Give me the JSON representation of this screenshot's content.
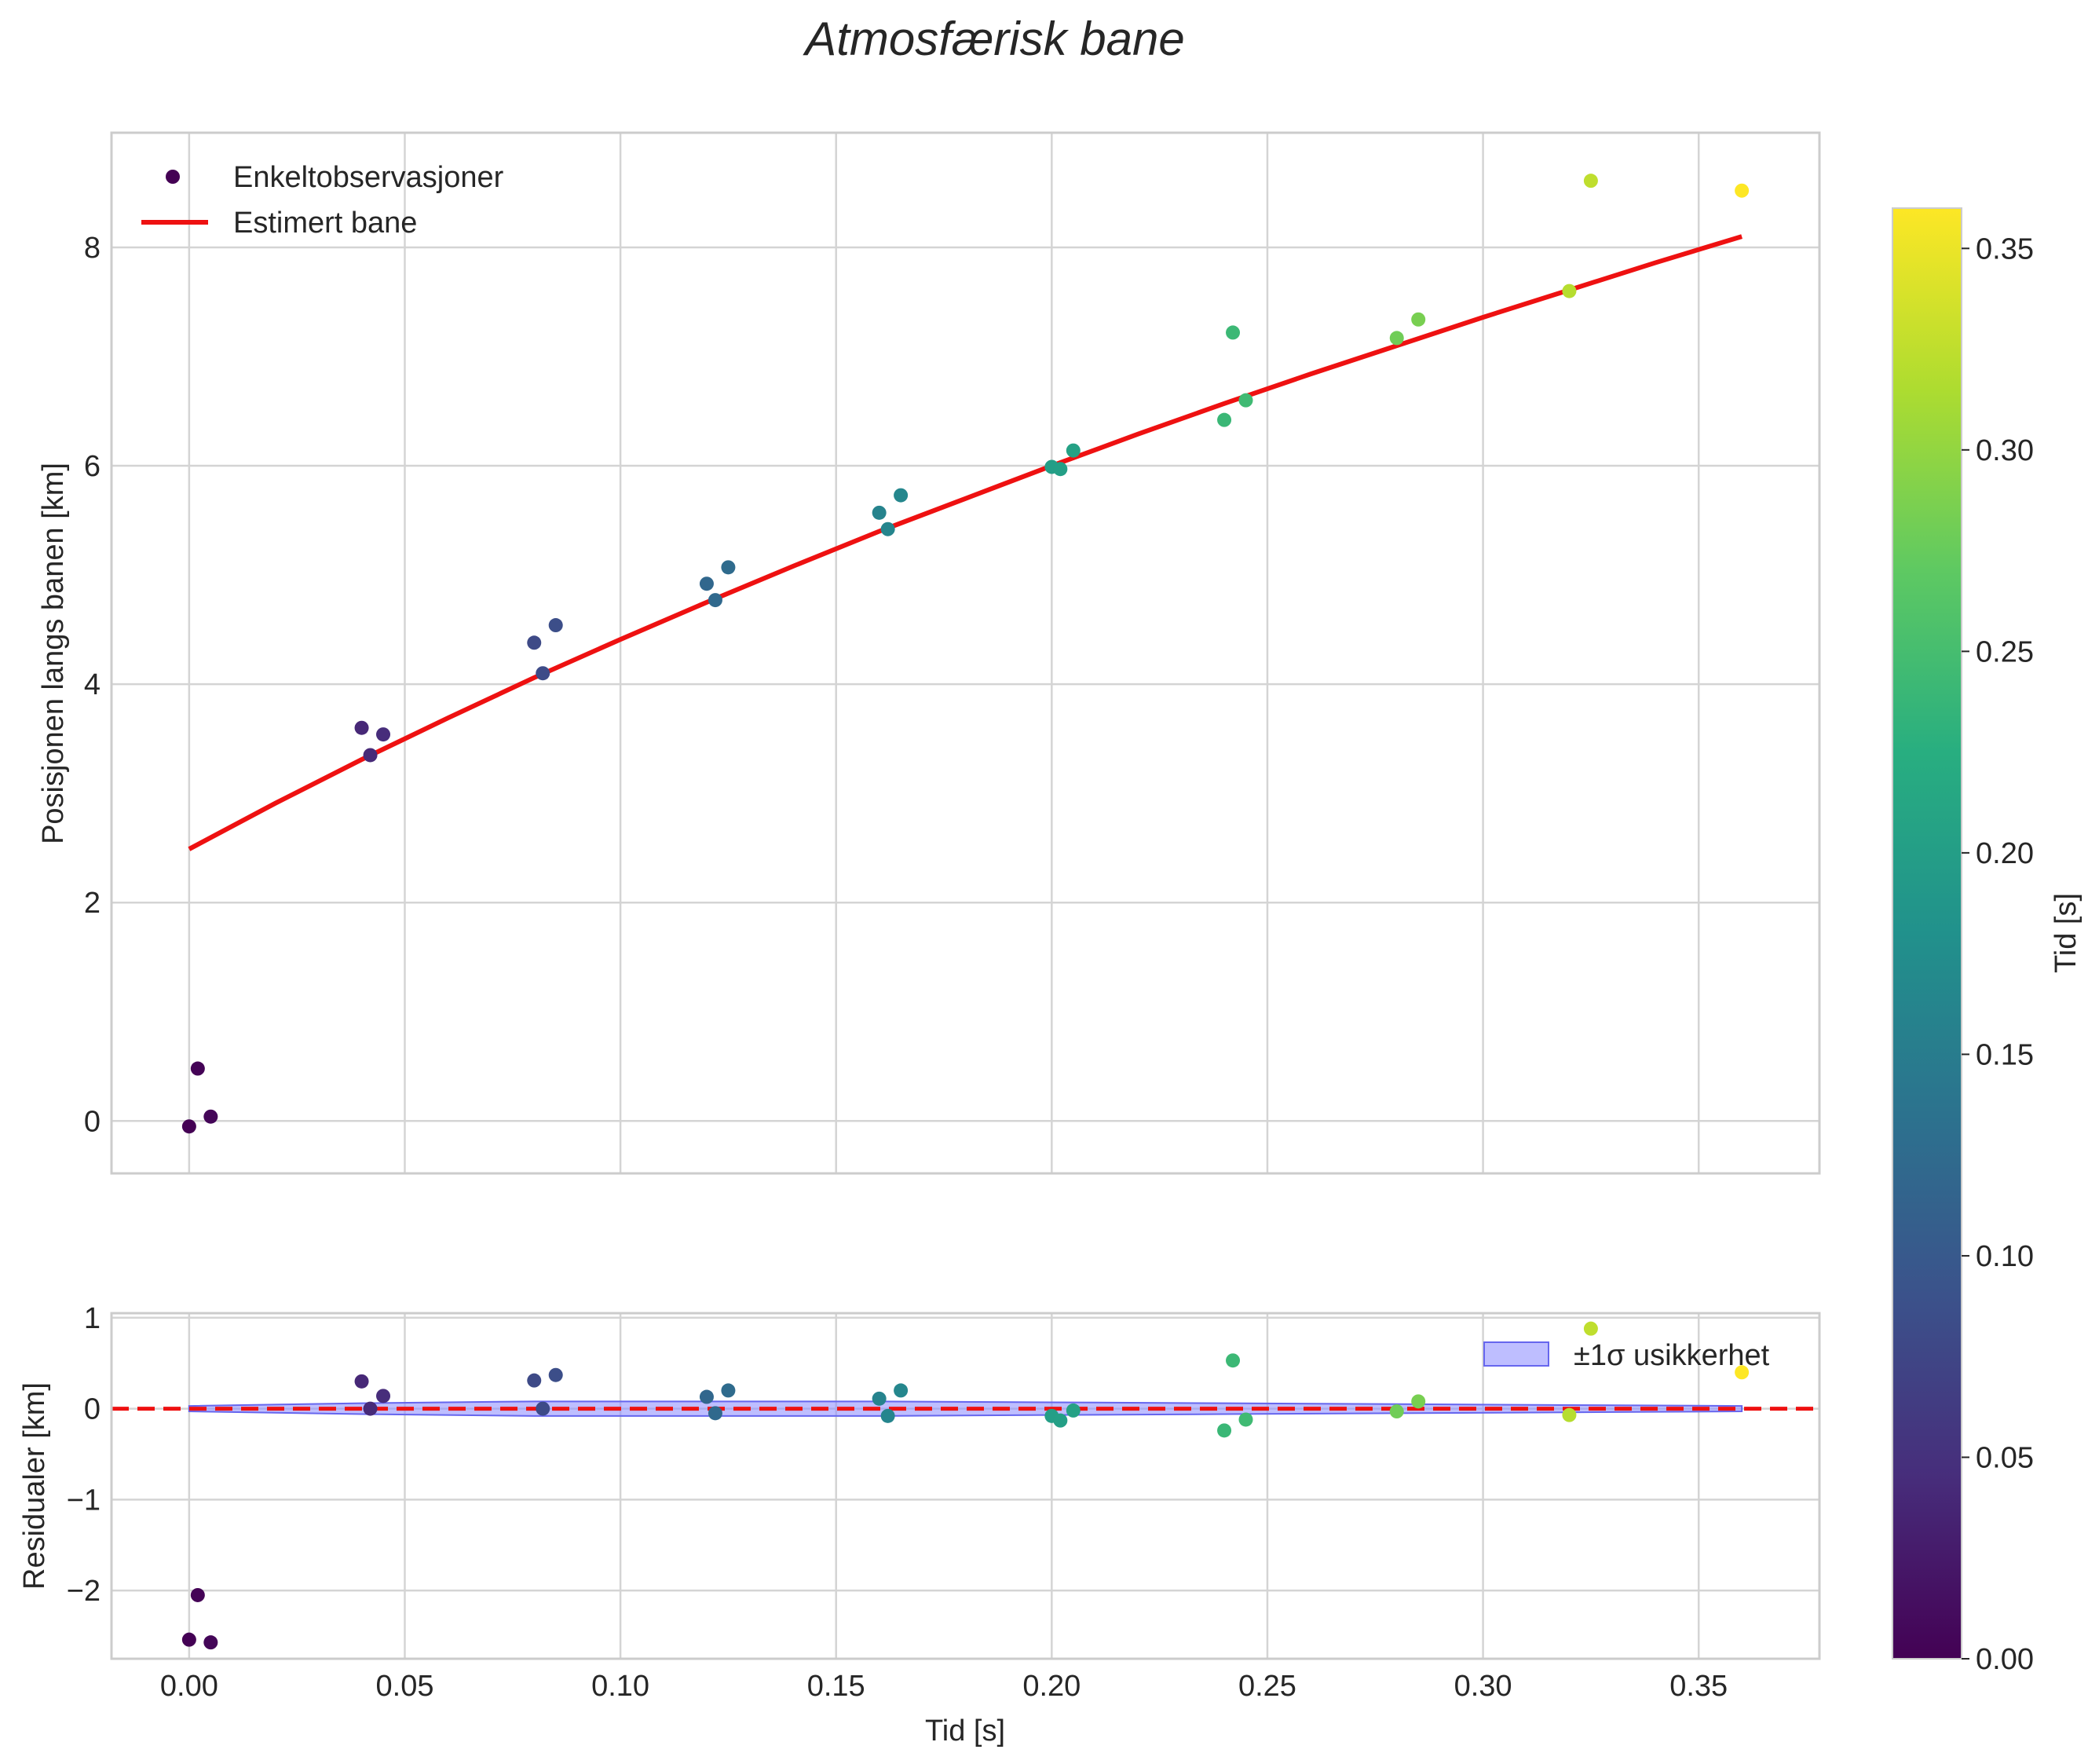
{
  "chart_data": {
    "title": "Atmosfærisk bane",
    "shared_xlabel": "Tid [s]",
    "colormap": "viridis",
    "xlim": [
      -0.018,
      0.378
    ],
    "x_ticks": [
      0.0,
      0.05,
      0.1,
      0.15,
      0.2,
      0.25,
      0.3,
      0.35
    ],
    "x_tick_labels": [
      "0.00",
      "0.05",
      "0.10",
      "0.15",
      "0.20",
      "0.25",
      "0.30",
      "0.35"
    ],
    "panels": [
      {
        "type": "scatter",
        "ylabel": "Posisjonen langs banen [km]",
        "ylim": [
          -0.48,
          9.05
        ],
        "y_ticks": [
          0,
          2,
          4,
          6,
          8
        ],
        "grid": true,
        "legend_position": "top-left",
        "legend": [
          {
            "label": "Enkeltobservasjoner",
            "kind": "marker"
          },
          {
            "label": "Estimert bane",
            "kind": "line",
            "color": "#ee1111"
          }
        ],
        "observations": {
          "name": "Enkeltobservasjoner",
          "t": [
            0.0,
            0.002,
            0.005,
            0.04,
            0.042,
            0.045,
            0.08,
            0.082,
            0.085,
            0.12,
            0.122,
            0.125,
            0.16,
            0.162,
            0.165,
            0.2,
            0.202,
            0.205,
            0.24,
            0.242,
            0.245,
            0.28,
            0.285,
            0.32,
            0.325,
            0.36
          ],
          "position_km": [
            -0.05,
            0.48,
            0.04,
            3.6,
            3.35,
            3.54,
            4.38,
            4.1,
            4.54,
            4.92,
            4.77,
            5.07,
            5.57,
            5.42,
            5.73,
            5.99,
            5.97,
            6.14,
            6.42,
            7.22,
            6.6,
            7.17,
            7.34,
            7.6,
            8.61,
            8.52
          ]
        },
        "fit": {
          "name": "Estimert bane",
          "color": "#ee1111",
          "t": [
            0.0,
            0.02,
            0.04,
            0.06,
            0.08,
            0.1,
            0.12,
            0.14,
            0.16,
            0.18,
            0.2,
            0.22,
            0.24,
            0.26,
            0.28,
            0.3,
            0.32,
            0.34,
            0.36
          ],
          "position_km": [
            2.49,
            2.91,
            3.31,
            3.69,
            4.06,
            4.41,
            4.75,
            5.08,
            5.4,
            5.7,
            6.0,
            6.29,
            6.57,
            6.84,
            7.1,
            7.36,
            7.61,
            7.86,
            8.1
          ]
        }
      },
      {
        "type": "scatter",
        "ylabel": "Residualer [km]",
        "ylim": [
          -2.75,
          1.05
        ],
        "y_ticks": [
          -2,
          -1,
          0,
          1
        ],
        "y_tick_labels": [
          "−2",
          "−1",
          "0",
          "1"
        ],
        "grid": true,
        "zero_line": {
          "value": 0,
          "color": "#ee1111",
          "style": "dashed"
        },
        "legend_position": "top-right",
        "legend": [
          {
            "label": "±1σ usikkerhet",
            "kind": "patch",
            "color": "#8888ff"
          }
        ],
        "uncertainty_band": {
          "t": [
            0.0,
            0.04,
            0.08,
            0.12,
            0.16,
            0.2,
            0.24,
            0.28,
            0.32,
            0.36
          ],
          "lower": [
            -0.03,
            -0.06,
            -0.08,
            -0.08,
            -0.08,
            -0.07,
            -0.06,
            -0.05,
            -0.04,
            -0.03
          ],
          "upper": [
            0.03,
            0.06,
            0.08,
            0.08,
            0.08,
            0.07,
            0.06,
            0.05,
            0.04,
            0.03
          ]
        },
        "residuals": {
          "t": [
            0.0,
            0.002,
            0.005,
            0.04,
            0.042,
            0.045,
            0.08,
            0.082,
            0.085,
            0.12,
            0.122,
            0.125,
            0.16,
            0.162,
            0.165,
            0.2,
            0.202,
            0.205,
            0.24,
            0.242,
            0.245,
            0.28,
            0.285,
            0.32,
            0.325,
            0.36
          ],
          "residual_km": [
            -2.54,
            -2.05,
            -2.57,
            0.3,
            0.0,
            0.14,
            0.31,
            0.0,
            0.37,
            0.13,
            -0.05,
            0.2,
            0.11,
            -0.08,
            0.2,
            -0.08,
            -0.13,
            -0.02,
            -0.24,
            0.53,
            -0.12,
            -0.03,
            0.08,
            -0.07,
            0.88,
            0.4
          ]
        }
      }
    ],
    "colorbar": {
      "label": "Tid [s]",
      "range": [
        0.0,
        0.36
      ],
      "ticks": [
        0.0,
        0.05,
        0.1,
        0.15,
        0.2,
        0.25,
        0.3,
        0.35
      ],
      "tick_labels": [
        "0.00",
        "0.05",
        "0.10",
        "0.15",
        "0.20",
        "0.25",
        "0.30",
        "0.35"
      ]
    }
  }
}
